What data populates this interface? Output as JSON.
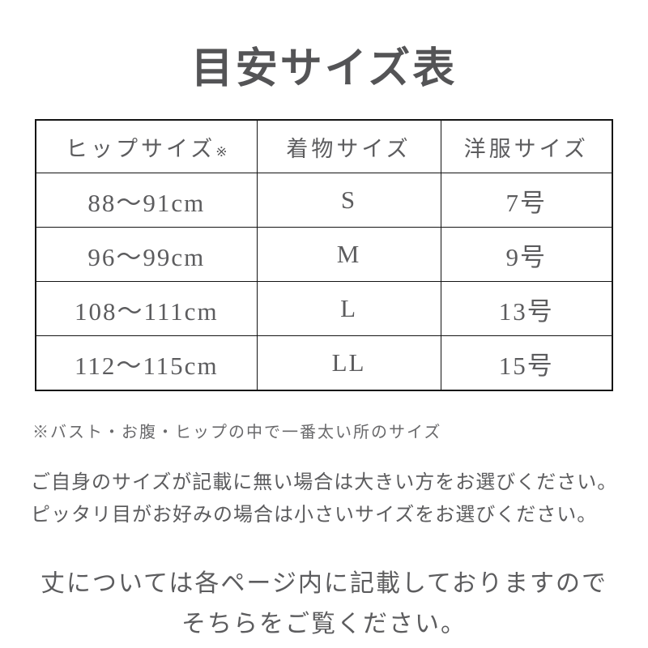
{
  "page": {
    "title": "目安サイズ表"
  },
  "size_table": {
    "columns": [
      "ヒップサイズ",
      "着物サイズ",
      "洋服サイズ"
    ],
    "hip_note_mark": "※",
    "rows": [
      {
        "hip": "88〜91cm",
        "kimono": "S",
        "western": "7号"
      },
      {
        "hip": "96〜99cm",
        "kimono": "M",
        "western": "9号"
      },
      {
        "hip": "108〜111cm",
        "kimono": "L",
        "western": "13号"
      },
      {
        "hip": "112〜115cm",
        "kimono": "LL",
        "western": "15号"
      }
    ]
  },
  "notes": {
    "footnote": "※バスト・お腹・ヒップの中で一番太い所のサイズ",
    "selection_guide_line1": "ご自身のサイズが記載に無い場合は大きい方をお選びください。",
    "selection_guide_line2": "ピッタリ目がお好みの場合は小さいサイズをお選びください。",
    "length_note_line1": "丈については各ページ内に記載しておりますので",
    "length_note_line2": "そちらをご覧ください。"
  },
  "colors": {
    "background": "#ffffff",
    "text": "#5c5c5e",
    "title": "#545456",
    "table_border": "#141414"
  }
}
